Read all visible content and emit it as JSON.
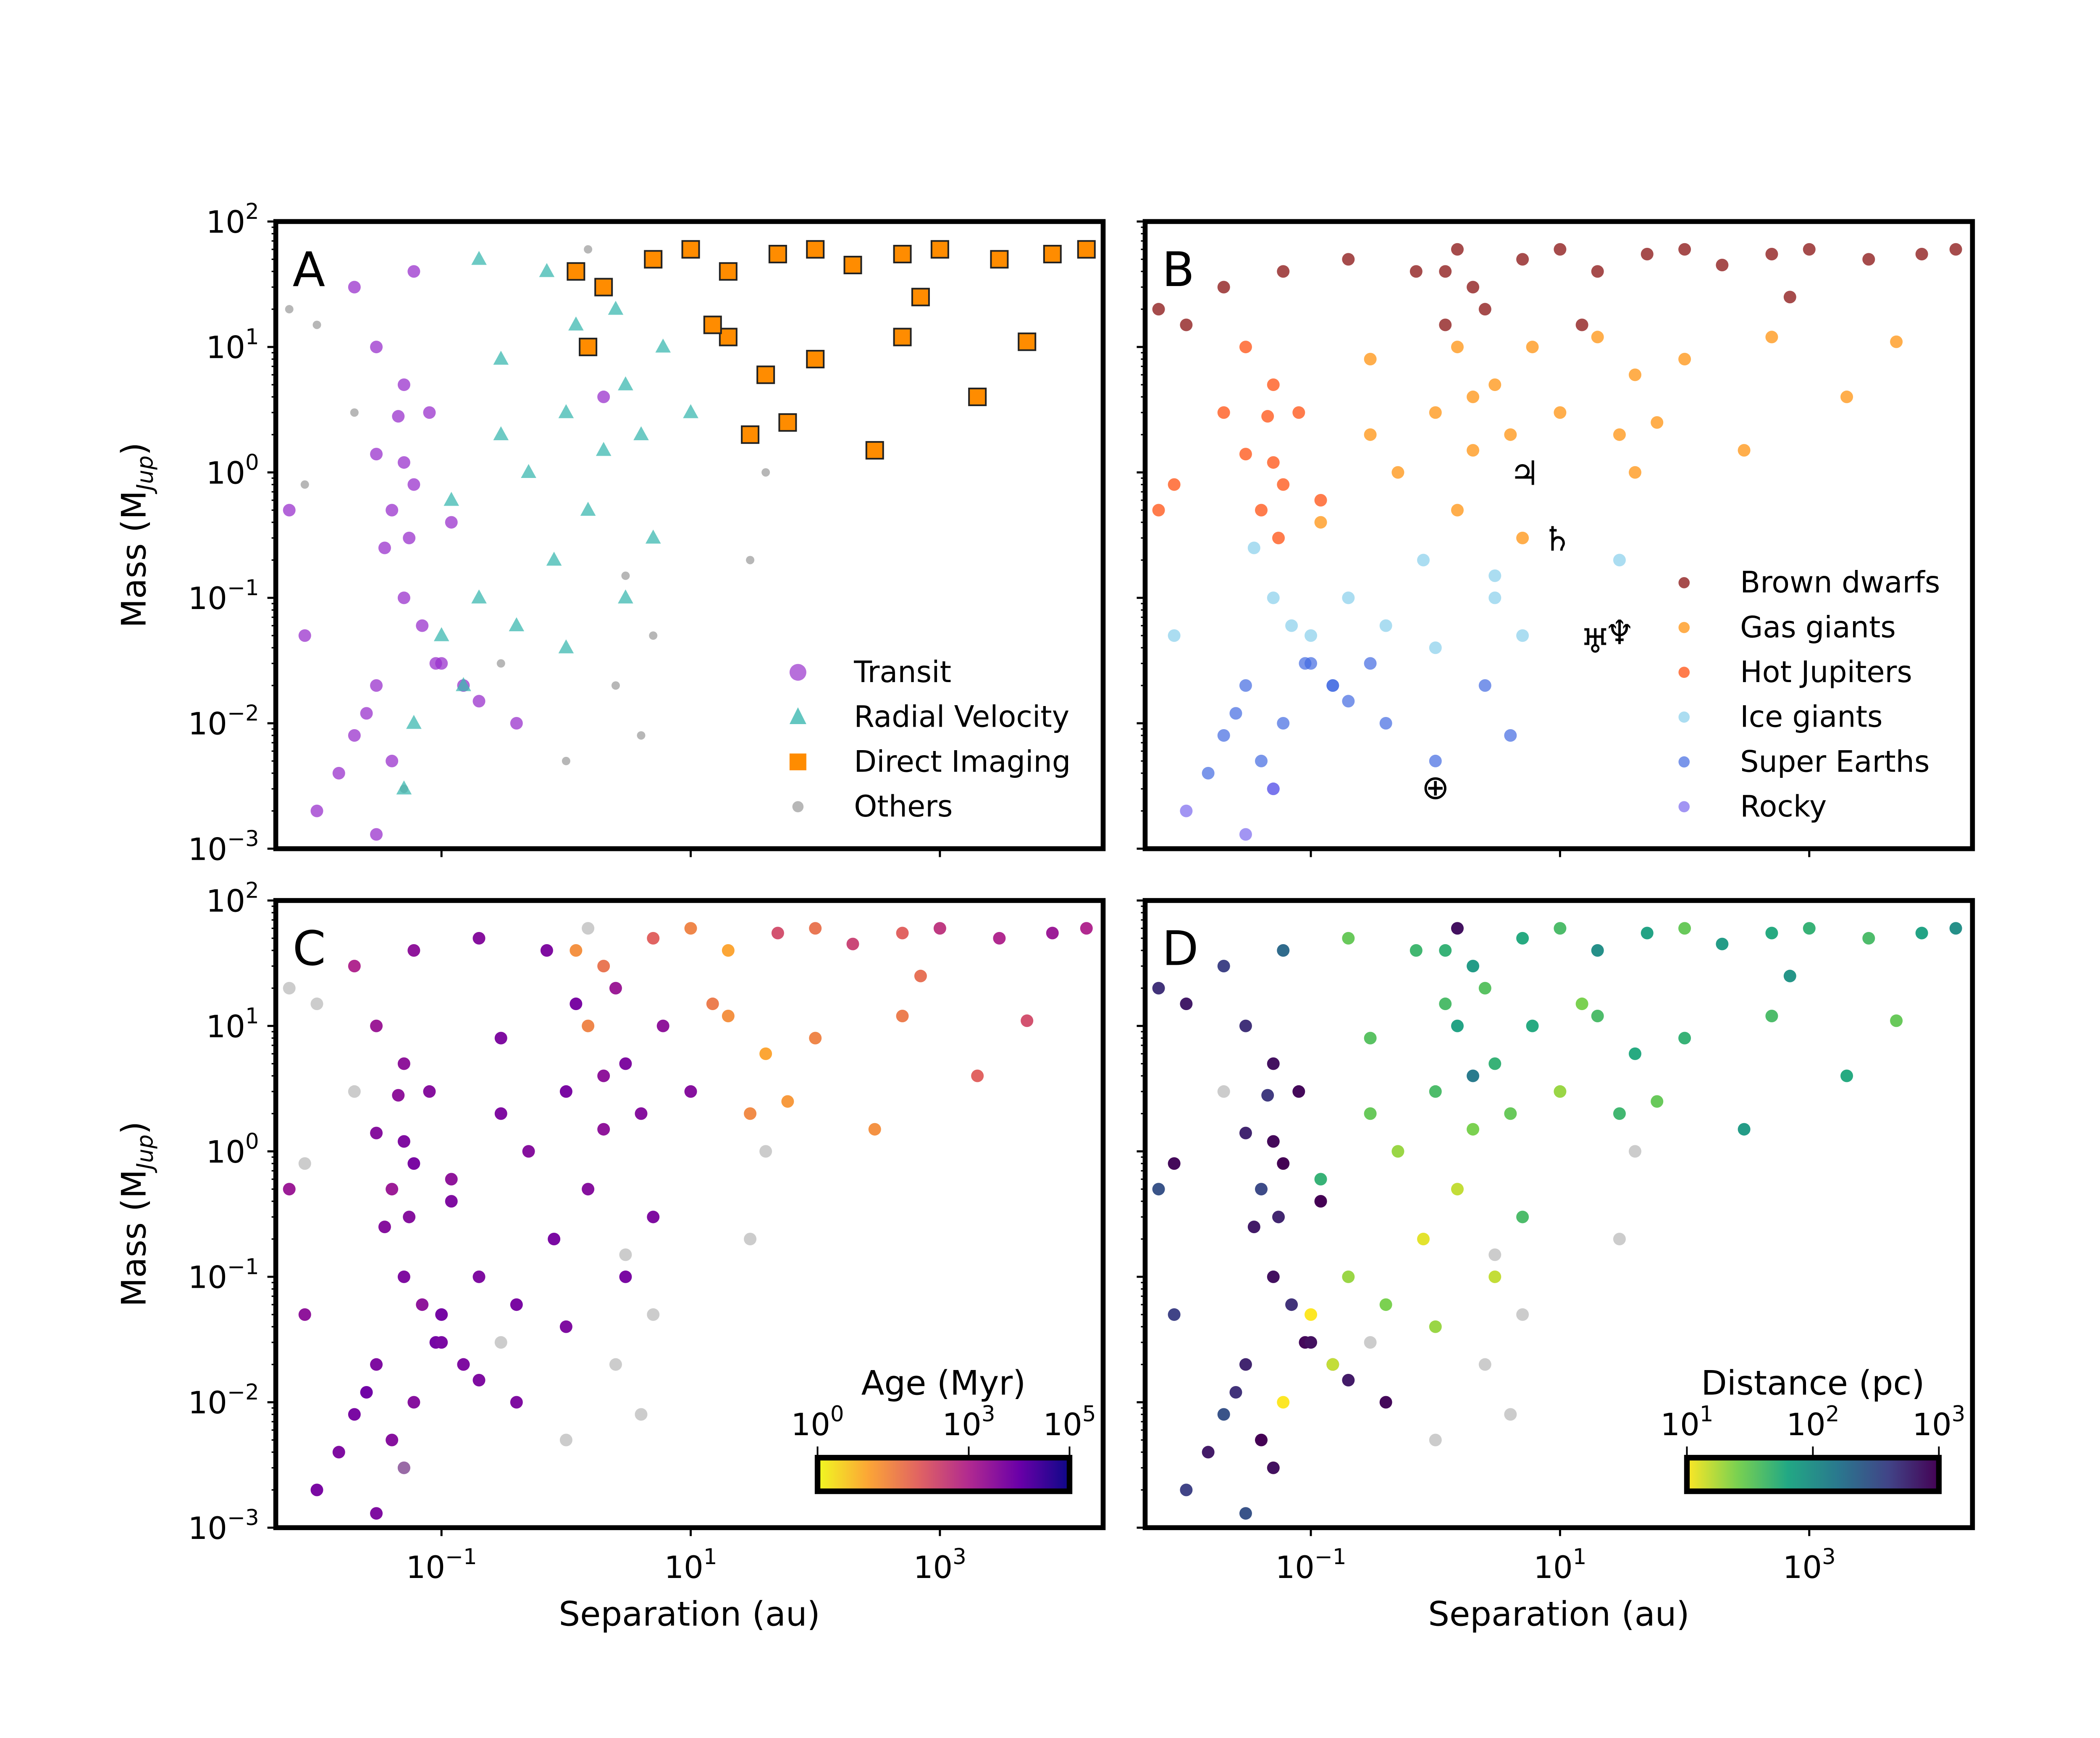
{
  "chart_data": [
    {
      "panel": "A",
      "type": "scatter",
      "panel_label": "A",
      "xlabel": "",
      "ylabel": "Mass (M_Jup)",
      "x_scale": "log",
      "y_scale": "log",
      "xlim": [
        0.0047,
        20000
      ],
      "ylim": [
        0.001,
        100
      ],
      "color_by": "method",
      "legend": "bottom-right",
      "legend_entries": [
        {
          "key": "T",
          "label": "Transit",
          "color": "#9932cc",
          "marker": "circle"
        },
        {
          "key": "R",
          "label": "Radial Velocity",
          "color": "#3cb8b0",
          "marker": "triangle"
        },
        {
          "key": "D",
          "label": "Direct Imaging",
          "color": "#ff8c00",
          "marker": "square"
        },
        {
          "key": "O",
          "label": "Others",
          "color": "#999999",
          "marker": "circle"
        }
      ]
    },
    {
      "panel": "B",
      "type": "scatter",
      "panel_label": "B",
      "xlabel": "",
      "ylabel": "",
      "x_scale": "log",
      "y_scale": "log",
      "xlim": [
        0.0047,
        20000
      ],
      "ylim": [
        0.001,
        100
      ],
      "color_by": "class",
      "legend": "bottom-right",
      "legend_entries": [
        {
          "key": "BD",
          "label": "Brown dwarfs",
          "color": "#800000"
        },
        {
          "key": "GG",
          "label": "Gas giants",
          "color": "#ff8c00"
        },
        {
          "key": "HJ",
          "label": "Hot Jupiters",
          "color": "#ff4500"
        },
        {
          "key": "IG",
          "label": "Ice giants",
          "color": "#87ceeb"
        },
        {
          "key": "SE",
          "label": "Super Earths",
          "color": "#4169e1"
        },
        {
          "key": "R",
          "label": "Rocky",
          "color": "#7b68ee"
        }
      ],
      "solar_system": [
        {
          "name": "Jupiter",
          "symbol": "♃",
          "separation_au": 5.2,
          "mass_mjup": 1.0
        },
        {
          "name": "Saturn",
          "symbol": "♄",
          "separation_au": 9.5,
          "mass_mjup": 0.3
        },
        {
          "name": "Uranus",
          "symbol": "♅",
          "separation_au": 19.2,
          "mass_mjup": 0.046
        },
        {
          "name": "Neptune",
          "symbol": "♆",
          "separation_au": 30,
          "mass_mjup": 0.054
        },
        {
          "name": "Earth",
          "symbol": "⊕",
          "separation_au": 1.0,
          "mass_mjup": 0.00315
        }
      ]
    },
    {
      "panel": "C",
      "type": "scatter",
      "panel_label": "C",
      "xlabel": "Separation (au)",
      "ylabel": "Mass (M_Jup)",
      "x_scale": "log",
      "y_scale": "log",
      "xlim": [
        0.0047,
        20000
      ],
      "ylim": [
        0.001,
        100
      ],
      "color_by": "age_myr",
      "colormap": "plasma_r",
      "colorbar": {
        "title": "Age (Myr)",
        "range": [
          1,
          100000
        ],
        "scale": "log",
        "ticks": [
          {
            "value": 1,
            "base": "10",
            "exp": "0"
          },
          {
            "value": 1000,
            "base": "10",
            "exp": "3"
          },
          {
            "value": 100000,
            "base": "10",
            "exp": "5"
          }
        ],
        "location": "bottom-right"
      }
    },
    {
      "panel": "D",
      "type": "scatter",
      "panel_label": "D",
      "xlabel": "Separation (au)",
      "ylabel": "",
      "x_scale": "log",
      "y_scale": "log",
      "xlim": [
        0.0047,
        20000
      ],
      "ylim": [
        0.001,
        100
      ],
      "color_by": "distance_pc",
      "colormap": "viridis_r",
      "colorbar": {
        "title": "Distance (pc)",
        "range": [
          10,
          1000
        ],
        "scale": "log",
        "ticks": [
          {
            "value": 10,
            "base": "10",
            "exp": "1"
          },
          {
            "value": 100,
            "base": "10",
            "exp": "2"
          },
          {
            "value": 1000,
            "base": "10",
            "exp": "3"
          }
        ],
        "location": "bottom-right"
      }
    }
  ],
  "axes": {
    "x_ticks": [
      {
        "value": 0.1,
        "base": "10",
        "exp": "−1"
      },
      {
        "value": 10,
        "base": "10",
        "exp": "1"
      },
      {
        "value": 1000,
        "base": "10",
        "exp": "3"
      }
    ],
    "y_ticks": [
      {
        "value": 100,
        "base": "10",
        "exp": "2"
      },
      {
        "value": 10,
        "base": "10",
        "exp": "1"
      },
      {
        "value": 1,
        "base": "10",
        "exp": "0"
      },
      {
        "value": 0.1,
        "base": "10",
        "exp": "−1"
      },
      {
        "value": 0.01,
        "base": "10",
        "exp": "−2"
      },
      {
        "value": 0.001,
        "base": "10",
        "exp": "−3"
      }
    ],
    "xlabel": "Separation (au)",
    "ylabel_main": "Mass (M",
    "ylabel_sub": "Jup",
    "ylabel_close": ")"
  },
  "planets": {
    "columns": [
      "separation_au",
      "mass_mjup",
      "method",
      "class",
      "age_myr",
      "distance_pc"
    ],
    "rows": [
      [
        0.03,
        1.4,
        "T",
        "HJ",
        4000,
        600
      ],
      [
        0.045,
        2.8,
        "T",
        "HJ",
        3000,
        450
      ],
      [
        0.05,
        1.2,
        "T",
        "HJ",
        5000,
        900
      ],
      [
        0.04,
        0.5,
        "T",
        "HJ",
        2000,
        350
      ],
      [
        0.06,
        0.8,
        "T",
        "HJ",
        6000,
        1000
      ],
      [
        0.035,
        0.25,
        "T",
        "IG",
        4000,
        700
      ],
      [
        0.05,
        0.1,
        "T",
        "IG",
        5000,
        800
      ],
      [
        0.07,
        0.06,
        "T",
        "IG",
        3000,
        500
      ],
      [
        0.09,
        0.03,
        "T",
        "SE",
        7000,
        900
      ],
      [
        0.03,
        0.02,
        "T",
        "SE",
        5000,
        600
      ],
      [
        0.02,
        0.008,
        "T",
        "SE",
        6000,
        300
      ],
      [
        0.04,
        0.005,
        "T",
        "SE",
        4000,
        1000
      ],
      [
        0.025,
        0.012,
        "T",
        "SE",
        8000,
        500
      ],
      [
        0.015,
        0.004,
        "T",
        "SE",
        5000,
        700
      ],
      [
        0.01,
        0.002,
        "T",
        "R",
        6000,
        400
      ],
      [
        0.03,
        0.0013,
        "T",
        "R",
        5000,
        300
      ],
      [
        0.05,
        5,
        "T",
        "HJ",
        3000,
        800
      ],
      [
        0.03,
        10,
        "T",
        "HJ",
        2000,
        500
      ],
      [
        0.02,
        30,
        "T",
        "BD",
        1000,
        400
      ],
      [
        0.06,
        40,
        "T",
        "BD",
        3000,
        200
      ],
      [
        0.08,
        3,
        "T",
        "HJ",
        4000,
        900
      ],
      [
        0.12,
        0.4,
        "T",
        "GG",
        5000,
        1000
      ],
      [
        0.1,
        0.03,
        "T",
        "SE",
        6000,
        800
      ],
      [
        0.15,
        0.02,
        "T",
        "SE",
        4000,
        600
      ],
      [
        0.2,
        0.015,
        "T",
        "SE",
        5000,
        700
      ],
      [
        0.008,
        0.05,
        "T",
        "IG",
        3000,
        400
      ],
      [
        0.006,
        0.5,
        "T",
        "HJ",
        2000,
        300
      ],
      [
        0.4,
        0.01,
        "T",
        "SE",
        5000,
        900
      ],
      [
        2,
        4,
        "T",
        "GG",
        3000,
        150
      ],
      [
        0.055,
        0.3,
        "T",
        "HJ",
        4000,
        600
      ],
      [
        0.3,
        2,
        "R",
        "GG",
        5000,
        30
      ],
      [
        0.5,
        1,
        "R",
        "GG",
        4000,
        20
      ],
      [
        1,
        3,
        "R",
        "GG",
        6000,
        40
      ],
      [
        2,
        1.5,
        "R",
        "GG",
        3000,
        25
      ],
      [
        3,
        5,
        "R",
        "GG",
        5000,
        50
      ],
      [
        1.5,
        0.5,
        "R",
        "GG",
        4000,
        15
      ],
      [
        0.8,
        0.2,
        "R",
        "IG",
        6000,
        12
      ],
      [
        0.2,
        0.1,
        "R",
        "IG",
        5000,
        20
      ],
      [
        0.1,
        0.05,
        "R",
        "IG",
        7000,
        10
      ],
      [
        0.15,
        0.02,
        "R",
        "SE",
        5000,
        15
      ],
      [
        0.06,
        0.01,
        "R",
        "SE",
        4000,
        8
      ],
      [
        0.4,
        0.06,
        "R",
        "IG",
        6000,
        25
      ],
      [
        5,
        0.3,
        "R",
        "GG",
        5000,
        40
      ],
      [
        4,
        2,
        "R",
        "GG",
        4000,
        30
      ],
      [
        6,
        10,
        "R",
        "GG",
        3000,
        60
      ],
      [
        2.5,
        20,
        "R",
        "BD",
        2000,
        35
      ],
      [
        0.7,
        40,
        "R",
        "BD",
        5000,
        45
      ],
      [
        0.2,
        50,
        "R",
        "BD",
        4000,
        30
      ],
      [
        1,
        0.04,
        "R",
        "IG",
        5000,
        20
      ],
      [
        3,
        0.1,
        "R",
        "IG",
        6000,
        15
      ],
      [
        0.05,
        0.003,
        "R",
        "SE",
        5000,
        5
      ],
      [
        10,
        3,
        "R",
        "GG",
        4000,
        20
      ],
      [
        0.12,
        0.6,
        "R",
        "HJ",
        3000,
        50
      ],
      [
        0.3,
        8,
        "R",
        "GG",
        5000,
        35
      ],
      [
        1.2,
        15,
        "R",
        "BD",
        6000,
        40
      ],
      [
        1.2,
        40,
        "D",
        "BD",
        20,
        50
      ],
      [
        2,
        30,
        "D",
        "BD",
        50,
        80
      ],
      [
        5,
        50,
        "D",
        "BD",
        100,
        60
      ],
      [
        10,
        60,
        "D",
        "BD",
        30,
        40
      ],
      [
        20,
        40,
        "D",
        "BD",
        10,
        100
      ],
      [
        50,
        55,
        "D",
        "BD",
        200,
        70
      ],
      [
        100,
        60,
        "D",
        "BD",
        50,
        30
      ],
      [
        200,
        45,
        "D",
        "BD",
        300,
        80
      ],
      [
        500,
        55,
        "D",
        "BD",
        100,
        60
      ],
      [
        1000,
        60,
        "D",
        "BD",
        500,
        50
      ],
      [
        3000,
        50,
        "D",
        "BD",
        1000,
        40
      ],
      [
        8000,
        55,
        "D",
        "BD",
        2000,
        70
      ],
      [
        15000,
        60,
        "D",
        "BD",
        1000,
        100
      ],
      [
        20,
        12,
        "D",
        "GG",
        20,
        40
      ],
      [
        40,
        6,
        "D",
        "GG",
        10,
        60
      ],
      [
        60,
        2.5,
        "D",
        "GG",
        15,
        30
      ],
      [
        100,
        8,
        "D",
        "GG",
        30,
        50
      ],
      [
        300,
        1.5,
        "D",
        "GG",
        20,
        80
      ],
      [
        500,
        12,
        "D",
        "GG",
        40,
        40
      ],
      [
        2000,
        4,
        "D",
        "GG",
        100,
        60
      ],
      [
        5000,
        11,
        "D",
        "GG",
        200,
        30
      ],
      [
        30,
        2,
        "D",
        "GG",
        25,
        45
      ],
      [
        1.5,
        10,
        "D",
        "GG",
        30,
        70
      ],
      [
        15,
        15,
        "D",
        "BD",
        40,
        25
      ],
      [
        700,
        25,
        "D",
        "BD",
        60,
        90
      ],
      [
        0.006,
        20,
        "O",
        "BD",
        null,
        500
      ],
      [
        0.01,
        15,
        "O",
        "BD",
        null,
        700
      ],
      [
        0.02,
        3,
        "O",
        "HJ",
        null,
        1200
      ],
      [
        0.008,
        0.8,
        "O",
        "HJ",
        null,
        900
      ],
      [
        3,
        0.15,
        "O",
        "IG",
        null,
        3000
      ],
      [
        5,
        0.05,
        "O",
        "IG",
        null,
        4000
      ],
      [
        2.5,
        0.02,
        "O",
        "SE",
        null,
        5000
      ],
      [
        4,
        0.008,
        "O",
        "SE",
        null,
        3500
      ],
      [
        1,
        0.005,
        "O",
        "SE",
        null,
        6000
      ],
      [
        30,
        0.2,
        "O",
        "IG",
        null,
        2000
      ],
      [
        40,
        1,
        "O",
        "GG",
        null,
        1500
      ],
      [
        0.3,
        0.03,
        "O",
        "SE",
        null,
        2000
      ],
      [
        1.5,
        60,
        "O",
        "BD",
        null,
        800
      ],
      [
        0.05,
        0.003,
        "O",
        "R",
        null,
        800
      ]
    ]
  },
  "colors": {
    "missing": "#aaaaaa",
    "frame": "#000000"
  }
}
